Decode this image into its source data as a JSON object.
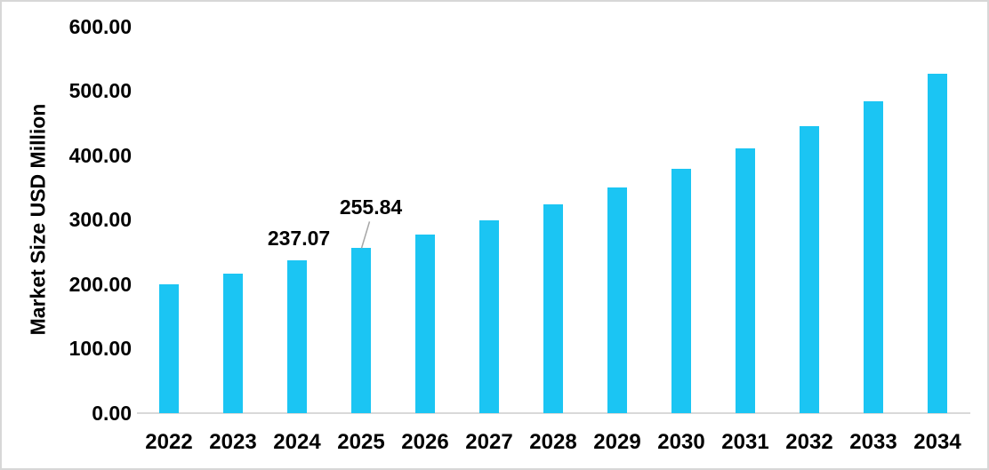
{
  "chart_data": {
    "type": "bar",
    "title": "",
    "xlabel": "",
    "ylabel": "Market Size USD Million",
    "categories": [
      "2022",
      "2023",
      "2024",
      "2025",
      "2026",
      "2027",
      "2028",
      "2029",
      "2030",
      "2031",
      "2032",
      "2033",
      "2034"
    ],
    "series": [
      {
        "name": "Market Size USD Million",
        "values": [
          200.5,
          216.9,
          237.07,
          255.84,
          277.0,
          299.5,
          324.3,
          349.7,
          378.6,
          410.8,
          445.6,
          484.2,
          526.5
        ]
      }
    ],
    "point_labels": [
      {
        "index": 2,
        "category": "2024",
        "text": "237.07",
        "leader": false
      },
      {
        "index": 3,
        "category": "2025",
        "text": "255.84",
        "leader": true
      }
    ],
    "ylim": [
      0,
      600
    ],
    "ytick_labels": [
      "0.00",
      "100.00",
      "200.00",
      "300.00",
      "400.00",
      "500.00",
      "600.00"
    ],
    "ytick_values": [
      0,
      100,
      200,
      300,
      400,
      500,
      600
    ],
    "grid": false,
    "legend": "none",
    "colors": {
      "bar": "#1BC5F3",
      "axis_line": "#D9D9D9",
      "leader_line": "#A6A6A6",
      "text": "#000000",
      "background": "#FFFFFF",
      "frame_border": "#D7D7D7"
    }
  }
}
